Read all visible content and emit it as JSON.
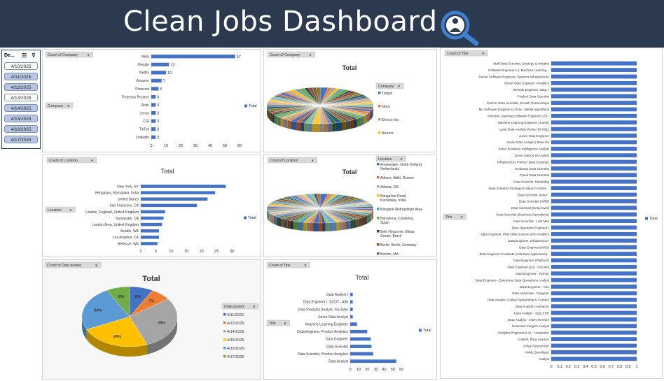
{
  "header": {
    "title": "Clean Jobs Dashboard",
    "icon": "search-person-icon"
  },
  "slicer": {
    "title": "De...",
    "items": [
      {
        "label": "4/10/2025",
        "selected": false
      },
      {
        "label": "4/11/2025",
        "selected": true
      },
      {
        "label": "4/12/2025",
        "selected": true
      },
      {
        "label": "4/13/2025",
        "selected": false
      },
      {
        "label": "4/14/2025",
        "selected": true
      },
      {
        "label": "4/15/2025",
        "selected": true
      },
      {
        "label": "4/16/2025",
        "selected": true
      },
      {
        "label": "4/17/2025",
        "selected": true
      }
    ]
  },
  "colors": {
    "bar": "#4472c4",
    "header_bg": "#2b3a4e"
  },
  "chart_data": [
    {
      "id": "company_bar",
      "type": "bar",
      "orientation": "horizontal",
      "field_tag": "Count of Company",
      "row_field": "Company",
      "legend": "Total",
      "categories": [
        "Meta",
        "Google",
        "Netflix",
        "Amazon",
        "Pinterest",
        "Thomson Reuters",
        "Roku",
        "Lensa",
        "CGI",
        "TikTok",
        "LinkedIn"
      ],
      "values": [
        57,
        12,
        10,
        7,
        5,
        3,
        3,
        3,
        3,
        3,
        3
      ],
      "xlim": [
        0,
        60
      ],
      "xticks": [
        "0",
        "10",
        "20",
        "30",
        "40",
        "50",
        "60"
      ]
    },
    {
      "id": "company_pie",
      "type": "pie",
      "field_tag": "Count of Company",
      "title": "Total",
      "legend_title": "Company",
      "legend": [
        "Target",
        "Nuro",
        "Eforce Inc",
        "Asoins"
      ],
      "legend_colors": [
        "#4472c4",
        "#ed7d31",
        "#a5a5a5",
        "#ffc000"
      ]
    },
    {
      "id": "title_bar_tall",
      "type": "bar",
      "orientation": "horizontal",
      "field_tag": "Count of Title",
      "row_field": "Title",
      "legend": "Total",
      "categories": [
        "Staff Data Scientist, Strategy & Insights",
        "Software Engineer L4, Machine Learning...",
        "Senior Software Engineer, Systems Infrastructure",
        "Senior Data Engineer, Analytics",
        "Remote Engineer, Data, I",
        "Product Data Scientist",
        "Partner Data Scientist, Growth Partnerships",
        "ML Software Engineer (L4/L5) - Media Algorithms",
        "Machine Learning Software Engineer (L5) -",
        "Machine Learning Engineer (Junior)",
        "Lead Data Analyst (Power BI,SQL)",
        "Junior Data Engineer",
        "Junior Data Analyst | Data Viz",
        "Junior Business Intelligence Analyst",
        "Junior Data & BI Analyst",
        "Infrastructure Partner Data Engineer",
        "Graduate Data Scientist",
        "Fraud Data Scientist",
        "Data Scientist, Marketing",
        "Data Scientist Strategy & Value Creation...",
        "Data Scientist Junior -",
        "Data Scientist (m/f/d)",
        "Data Scientist (Entry level)",
        "Data Scientist (Business Operations)",
        "Data Scientist - Last Mile",
        "Data Operation Engineer I",
        "Data Engineer, Play Data Science and Analytics",
        "Data Engineer, Infrastructure",
        "Data Engineer(AWS)",
        "Data Engineer Graduate (Ads Data Application) -",
        "Data Engineer (Platform)",
        "Data Engineer (L4) - Security",
        "Data Engineer - Python",
        "Data Engineer - Enterprise Data Operations Analyst",
        "Data Engineer - C11",
        "Data Associate - Gurgaon",
        "Data Analyst, Global Partnership & Content",
        "Data Analyst Contractor",
        "Data Analyst - SQL,ERP",
        "Data Analyst - 100% Remote",
        "Customer Insights Analyst",
        "Analytics Engineer (L4) - Acquisition",
        "Analyst, Data Science",
        "AI/ML Researcher",
        "AI/ML Developer",
        "Analyst"
      ],
      "values": [
        1,
        1,
        1,
        1,
        1,
        1,
        1,
        1,
        1,
        1,
        1,
        1,
        1,
        1,
        1,
        1,
        1,
        1,
        1,
        1,
        1,
        1,
        1,
        1,
        1,
        1,
        1,
        1,
        1,
        1,
        1,
        1,
        1,
        1,
        1,
        1,
        1,
        1,
        1,
        1,
        1,
        1,
        1,
        1,
        1,
        1
      ],
      "xlim": [
        0,
        1
      ],
      "xticks": [
        "0",
        "0.1",
        "0.2",
        "0.3",
        "0.4",
        "0.5",
        "0.6",
        "0.7",
        "0.8",
        "0.9",
        "1"
      ]
    },
    {
      "id": "location_bar",
      "type": "bar",
      "orientation": "horizontal",
      "field_tag": "Count of Location",
      "row_field": "Location",
      "title": "Total",
      "legend": "Total",
      "categories": [
        "New York, NY",
        "Bengaluru, Karnataka, India",
        "United States",
        "San Francisco, CA",
        "London, England, United Kingdom",
        "Sunnyvale, CA",
        "London Area, United Kingdom",
        "Seattle, WA",
        "Los Angeles, CA",
        "Bellevue, WA"
      ],
      "values": [
        28,
        24.5,
        22,
        18.5,
        8,
        7.5,
        7,
        6,
        6,
        5.5
      ],
      "xlim": [
        0,
        30
      ],
      "xticks": [
        "0",
        "5",
        "10",
        "15",
        "20",
        "25",
        "30"
      ]
    },
    {
      "id": "location_pie",
      "type": "pie",
      "field_tag": "Count of Location",
      "title": "Total",
      "legend_title": "Location",
      "legend": [
        "Amsterdam, North Holland, Netherlands",
        "Athens, Attiki, Greece",
        "Atlanta, GA",
        "Bangalore Rural, Karnataka, India",
        "Bangkok Metropolitan Area",
        "Barcelona, Catalonia, Spain",
        "Belo Horizonte, Minas Gerais, Brazil",
        "Berlin, Berlin, Germany",
        "Boston, MA",
        "Boulogne-Billancourt, Île-de-France, France"
      ],
      "legend_colors": [
        "#4472c4",
        "#ed7d31",
        "#a5a5a5",
        "#ffc000",
        "#5b9bd5",
        "#70ad47",
        "#264478",
        "#9e480e",
        "#636363",
        "#997300"
      ]
    },
    {
      "id": "date_pie",
      "type": "pie",
      "field_tag": "Count of Date posted",
      "title": "Total",
      "legend_title": "Date posted",
      "categories": [
        "4/11/2025",
        "4/12/2025",
        "4/14/2025",
        "4/15/2025",
        "4/16/2025",
        "4/17/2025"
      ],
      "values": [
        8,
        7,
        29,
        24,
        24,
        8
      ],
      "labels": [
        "8%",
        "7%",
        "29%",
        "24%",
        "24%",
        "8%"
      ],
      "colors": [
        "#4472c4",
        "#ed7d31",
        "#a5a5a5",
        "#ffc000",
        "#5b9bd5",
        "#70ad47"
      ]
    },
    {
      "id": "title_bar",
      "type": "bar",
      "orientation": "horizontal",
      "field_tag": "Count of Title",
      "row_field": "Title",
      "title": "Total",
      "legend": "Total",
      "categories": [
        "Data Analyst I",
        "Data Engineer I, SCOT - AIM",
        "Data Products Analyst, YouTube",
        "Junior Data Analyst",
        "Machine Learning Engineer",
        "Data Engineer, Product Analytics",
        "Data Engineer",
        "Data Scientist",
        "Data Scientist, Product Analytics",
        "Data Analyst"
      ],
      "values": [
        3,
        3,
        3,
        3,
        8,
        20,
        24,
        25,
        27,
        54
      ],
      "xlim": [
        0,
        60
      ],
      "xticks": [
        "0",
        "10",
        "20",
        "30",
        "40",
        "50",
        "60"
      ]
    }
  ]
}
